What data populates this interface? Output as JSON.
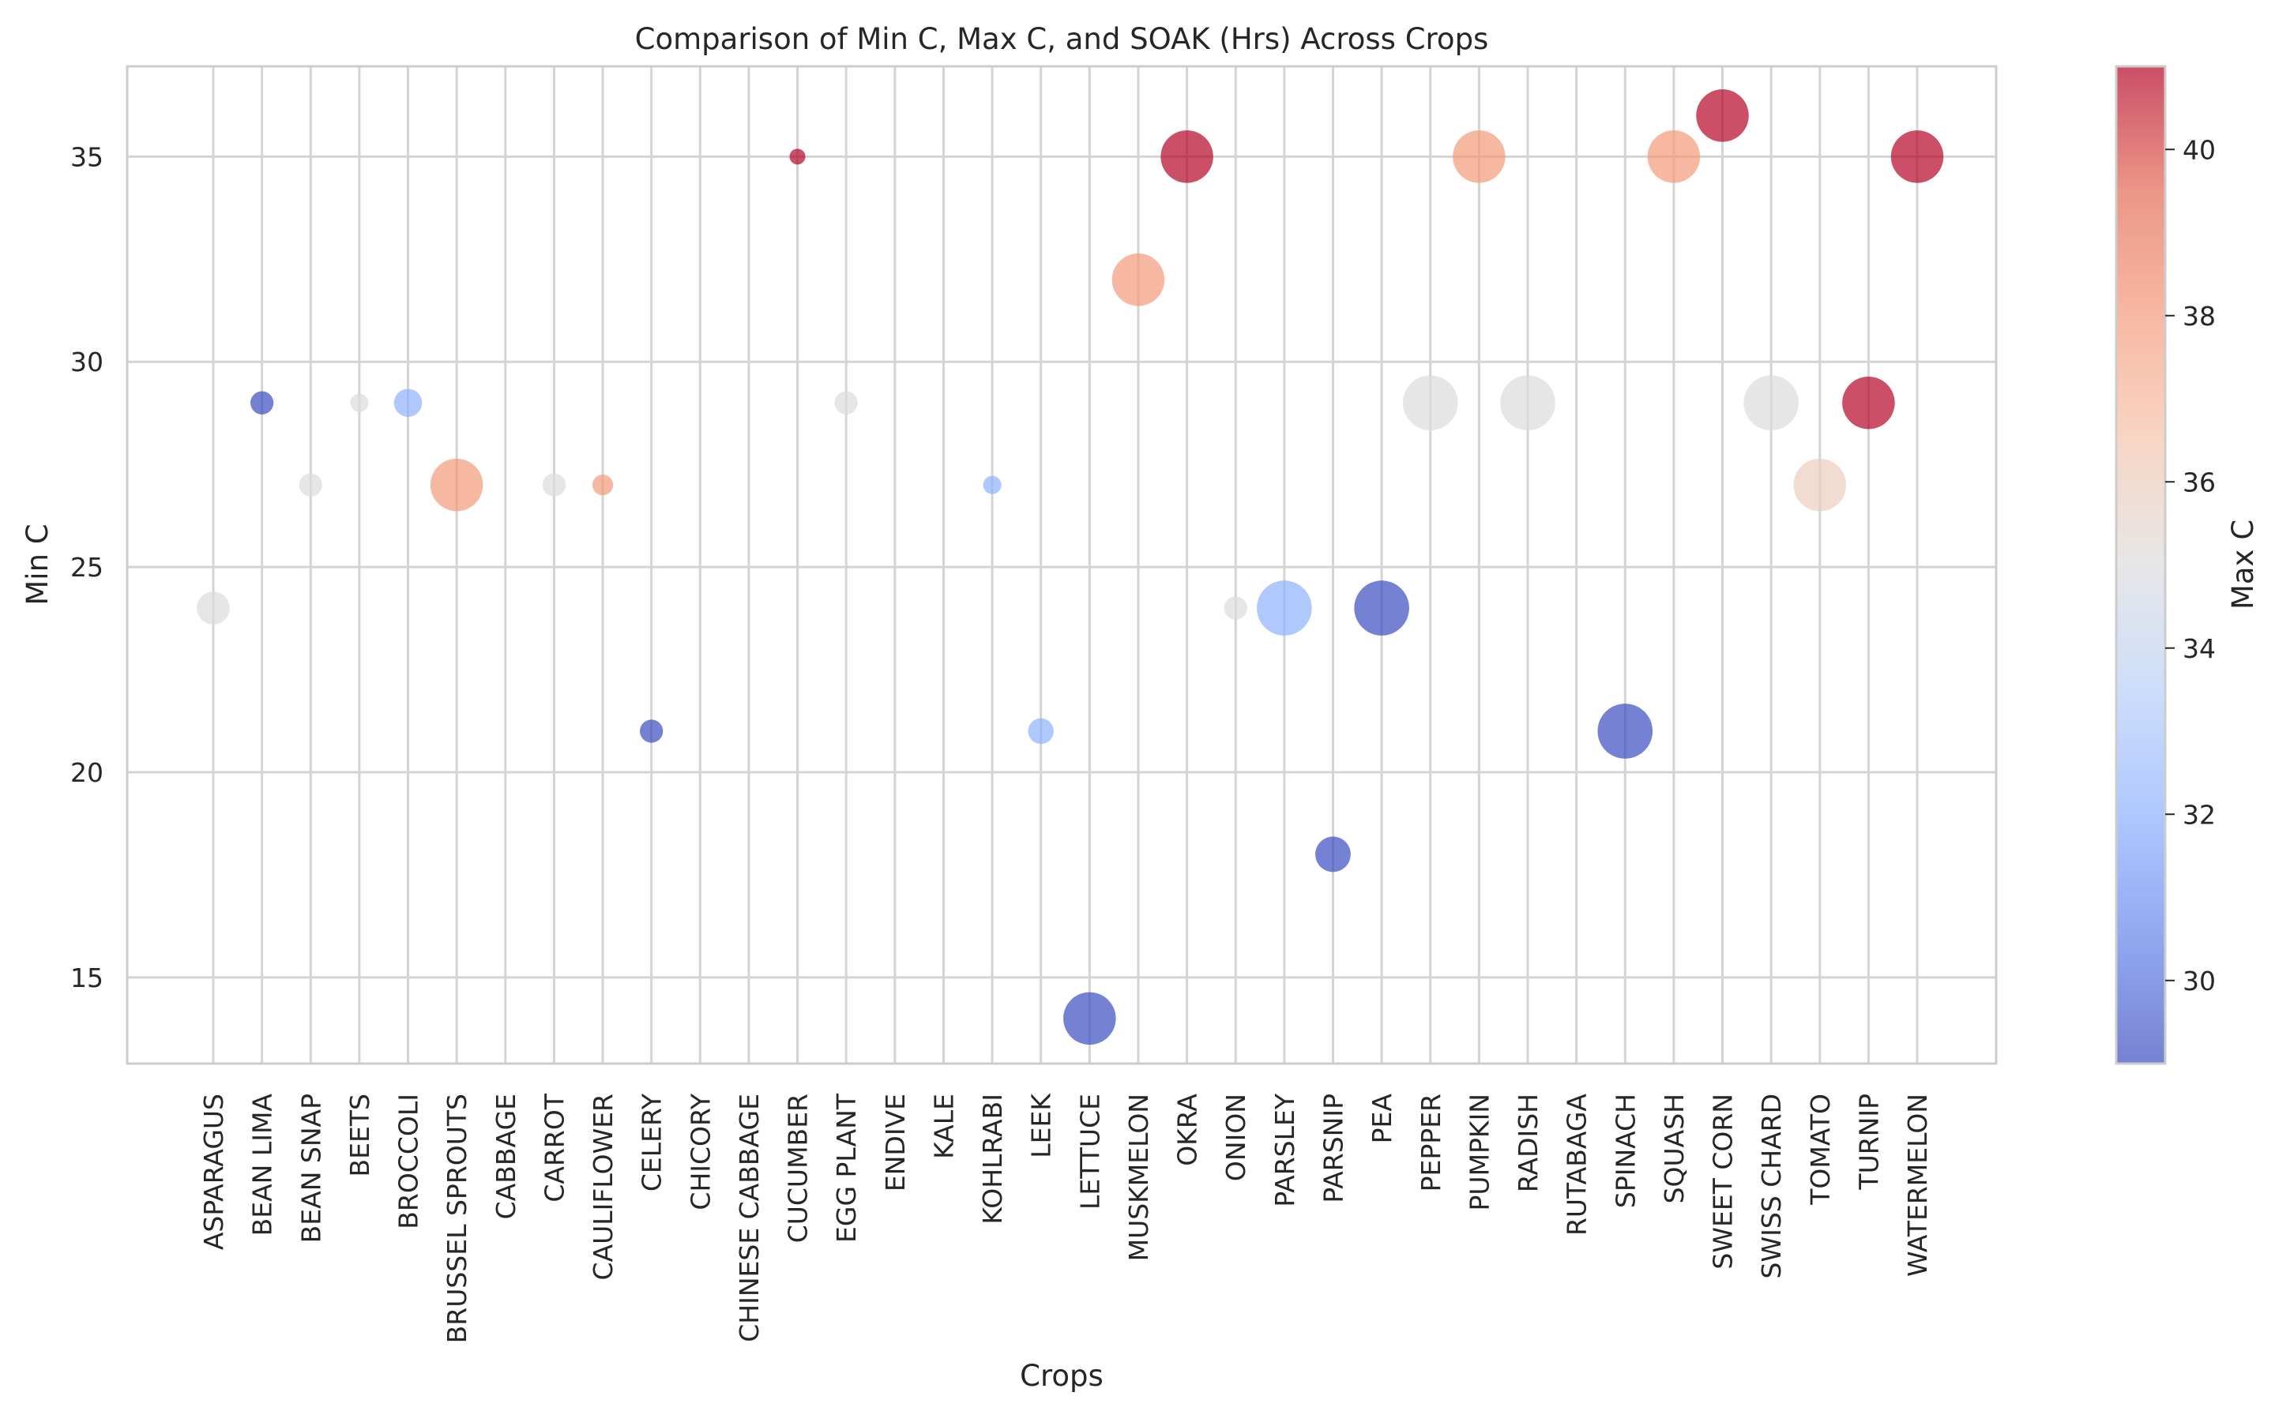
{
  "chart_data": {
    "type": "scatter",
    "title": "Comparison of Min C, Max C, and SOAK (Hrs) Across Crops",
    "xlabel": "Crops",
    "ylabel": "Min C",
    "ylim": [
      12.9,
      37.2
    ],
    "yticks": [
      15,
      20,
      25,
      30,
      35
    ],
    "grid": true,
    "colorbar": {
      "label": "Max C",
      "min": 29,
      "max": 41,
      "ticks": [
        30,
        32,
        34,
        36,
        38,
        40
      ],
      "colormap": "coolwarm",
      "colormap_stops": [
        "#3b4cc0",
        "#6282ea",
        "#8db0fe",
        "#b8d0f9",
        "#dddcdc",
        "#f5c4ac",
        "#f49a7b",
        "#e46a55",
        "#b40426"
      ]
    },
    "size_variable": "SOAK (Hrs)",
    "categories": [
      "ASPARAGUS",
      "BEAN LIMA",
      "BEAN SNAP",
      "BEETS",
      "BROCCOLI",
      "BRUSSEL SPROUTS",
      "CABBAGE",
      "CARROT",
      "CAULIFLOWER",
      "CELERY",
      "CHICORY",
      "CHINESE CABBAGE",
      "CUCUMBER",
      "EGG PLANT",
      "ENDIVE",
      "KALE",
      "KOHLRABI",
      "LEEK",
      "LETTUCE",
      "MUSKMELON",
      "OKRA",
      "ONION",
      "PARSLEY",
      "PARSNIP",
      "PEA",
      "PEPPER",
      "PUMPKIN",
      "RADISH",
      "RUTABAGA",
      "SPINACH",
      "SQUASH",
      "SWEET CORN",
      "SWISS CHARD",
      "TOMATO",
      "TURNIP",
      "WATERMELON"
    ],
    "points": [
      {
        "crop": "ASPARAGUS",
        "min_c": 24,
        "max_c": 35,
        "soak_hrs": 5
      },
      {
        "crop": "BEAN LIMA",
        "min_c": 29,
        "max_c": 29,
        "soak_hrs": 3
      },
      {
        "crop": "BEAN SNAP",
        "min_c": 27,
        "max_c": 35,
        "soak_hrs": 3
      },
      {
        "crop": "BEETS",
        "min_c": 29,
        "max_c": 35,
        "soak_hrs": 2
      },
      {
        "crop": "BROCCOLI",
        "min_c": 29,
        "max_c": 32,
        "soak_hrs": 4
      },
      {
        "crop": "BRUSSEL SPROUTS",
        "min_c": 27,
        "max_c": 38,
        "soak_hrs": 9
      },
      {
        "crop": "CARROT",
        "min_c": 27,
        "max_c": 35,
        "soak_hrs": 3
      },
      {
        "crop": "CAULIFLOWER",
        "min_c": 27,
        "max_c": 38,
        "soak_hrs": 2.5
      },
      {
        "crop": "CELERY",
        "min_c": 21,
        "max_c": 29,
        "soak_hrs": 3
      },
      {
        "crop": "CUCUMBER",
        "min_c": 35,
        "max_c": 41,
        "soak_hrs": 1.5
      },
      {
        "crop": "EGG PLANT",
        "min_c": 29,
        "max_c": 35,
        "soak_hrs": 3
      },
      {
        "crop": "KOHLRABI",
        "min_c": 27,
        "max_c": 32,
        "soak_hrs": 2
      },
      {
        "crop": "LEEK",
        "min_c": 21,
        "max_c": 32,
        "soak_hrs": 3.5
      },
      {
        "crop": "LETTUCE",
        "min_c": 14,
        "max_c": 29,
        "soak_hrs": 9
      },
      {
        "crop": "MUSKMELON",
        "min_c": 32,
        "max_c": 38,
        "soak_hrs": 9
      },
      {
        "crop": "OKRA",
        "min_c": 35,
        "max_c": 41,
        "soak_hrs": 9
      },
      {
        "crop": "ONION",
        "min_c": 24,
        "max_c": 35,
        "soak_hrs": 3
      },
      {
        "crop": "PARSLEY",
        "min_c": 24,
        "max_c": 32,
        "soak_hrs": 9.5
      },
      {
        "crop": "PARSNIP",
        "min_c": 18,
        "max_c": 29,
        "soak_hrs": 5.5
      },
      {
        "crop": "PEA",
        "min_c": 24,
        "max_c": 29,
        "soak_hrs": 9.5
      },
      {
        "crop": "PEPPER",
        "min_c": 29,
        "max_c": 35,
        "soak_hrs": 9.5
      },
      {
        "crop": "PUMPKIN",
        "min_c": 35,
        "max_c": 38,
        "soak_hrs": 9
      },
      {
        "crop": "RADISH",
        "min_c": 29,
        "max_c": 35,
        "soak_hrs": 9.5
      },
      {
        "crop": "SPINACH",
        "min_c": 21,
        "max_c": 29,
        "soak_hrs": 9.5
      },
      {
        "crop": "SQUASH",
        "min_c": 35,
        "max_c": 38,
        "soak_hrs": 9
      },
      {
        "crop": "SWEET CORN",
        "min_c": 36,
        "max_c": 41,
        "soak_hrs": 9
      },
      {
        "crop": "SWISS CHARD",
        "min_c": 29,
        "max_c": 35,
        "soak_hrs": 9.5
      },
      {
        "crop": "TOMATO",
        "min_c": 27,
        "max_c": 36,
        "soak_hrs": 9
      },
      {
        "crop": "TURNIP",
        "min_c": 29,
        "max_c": 41,
        "soak_hrs": 9
      },
      {
        "crop": "WATERMELON",
        "min_c": 35,
        "max_c": 41,
        "soak_hrs": 9
      }
    ]
  }
}
